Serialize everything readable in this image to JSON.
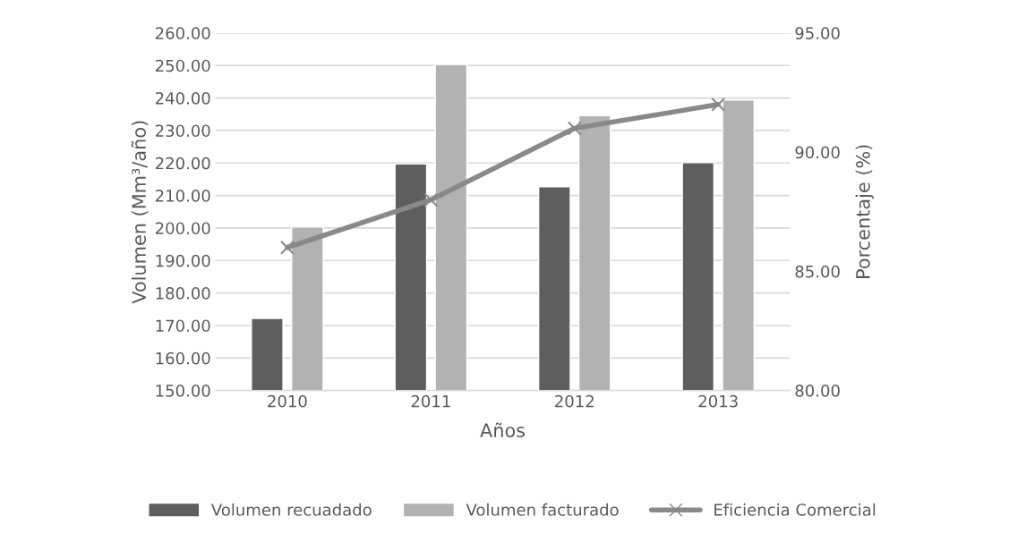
{
  "chart_data": {
    "type": "bar",
    "categories": [
      "2010",
      "2011",
      "2012",
      "2013"
    ],
    "xlabel": "Años",
    "ylabel": "Volumen (Mm³/año)",
    "y2label": "Porcentaje (%)",
    "series": [
      {
        "name": "Volumen recuadado",
        "color": "#5e5e5e",
        "values": [
          172.2,
          219.7,
          212.7,
          220.1
        ]
      },
      {
        "name": "Volumen facturado",
        "color": "#b2b2b2",
        "values": [
          200.3,
          250.3,
          234.6,
          239.4
        ]
      },
      {
        "name": "Eficiencia Comercial",
        "type": "line",
        "axis": "y2",
        "color": "#898989",
        "marker": "cross",
        "values": [
          86.0,
          88.0,
          91.0,
          92.0
        ]
      }
    ],
    "ylim": [
      150,
      260
    ],
    "yticks": [
      {
        "value": 150,
        "label": "150.00"
      },
      {
        "value": 160,
        "label": "160.00"
      },
      {
        "value": 170,
        "label": "170.00"
      },
      {
        "value": 180,
        "label": "180.00"
      },
      {
        "value": 190,
        "label": "190.00"
      },
      {
        "value": 200,
        "label": "200.00"
      },
      {
        "value": 210,
        "label": "210.00"
      },
      {
        "value": 220,
        "label": "220.00"
      },
      {
        "value": 230,
        "label": "230.00"
      },
      {
        "value": 240,
        "label": "240.00"
      },
      {
        "value": 250,
        "label": "250.00"
      },
      {
        "value": 260,
        "label": "260.00"
      }
    ],
    "y2lim": [
      80,
      95
    ],
    "y2ticks": [
      {
        "value": 80,
        "label": "80.00"
      },
      {
        "value": 85,
        "label": "85.00"
      },
      {
        "value": 90,
        "label": "90.00"
      },
      {
        "value": 95,
        "label": "95.00"
      }
    ],
    "grid": "y",
    "legend": "bottom"
  }
}
